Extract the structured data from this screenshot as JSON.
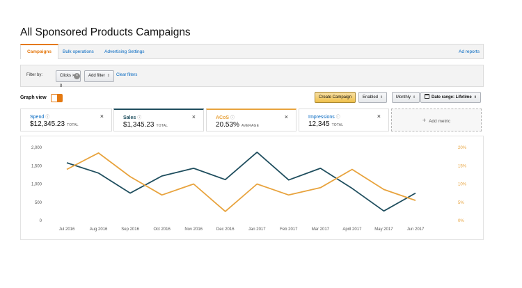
{
  "page": {
    "title": "All Sponsored Products Campaigns"
  },
  "tabs": [
    {
      "label": "Campaigns",
      "active": true
    },
    {
      "label": "Bulk operations",
      "active": false
    },
    {
      "label": "Advertising Settings",
      "active": false
    }
  ],
  "ad_reports_label": "Ad reports",
  "filter": {
    "label": "Filter by:",
    "active_filter": "Clicks > 0",
    "add_filter": "Add filter",
    "clear_filters": "Clear filters"
  },
  "graph_view": {
    "label": "Graph view",
    "enabled": true
  },
  "toolbar": {
    "create_campaign": "Create Campaign",
    "status": "Enabled",
    "interval": "Monthly",
    "date_range": "Date range: Lifetime"
  },
  "metrics": [
    {
      "name": "Spend",
      "value": "$12,345.23",
      "suffix": "TOTAL",
      "selected": false
    },
    {
      "name": "Sales",
      "value": "$1,345.23",
      "suffix": "TOTAL",
      "selected": true
    },
    {
      "name": "ACoS",
      "value": "20.53%",
      "suffix": "AVERAGE",
      "selected": true
    },
    {
      "name": "Impressions",
      "value": "12,345",
      "suffix": "TOTAL",
      "selected": false
    }
  ],
  "add_metric_label": "Add metric",
  "colors": {
    "sales": "#1f4e5e",
    "acos": "#e8a33d",
    "accent": "#e47911",
    "link": "#0066c0"
  },
  "icons": {
    "help": "question-circle-icon",
    "close": "close-icon",
    "add": "plus-icon",
    "calendar": "calendar-icon"
  },
  "chart_data": {
    "type": "line",
    "categories": [
      "Jul 2016",
      "Aug 2016",
      "Sep 2016",
      "Oct 2016",
      "Nov 2016",
      "Dec 2016",
      "Jan 2017",
      "Feb 2017",
      "Mar 2017",
      "April 2017",
      "May 2017",
      "Jun 2017"
    ],
    "series": [
      {
        "name": "Sales",
        "axis": "left",
        "color": "#1f4e5e",
        "values": [
          1580,
          1300,
          750,
          1220,
          1430,
          1120,
          1870,
          1110,
          1430,
          880,
          260,
          750
        ]
      },
      {
        "name": "ACoS",
        "axis": "right",
        "color": "#e8a33d",
        "values": [
          14,
          18.5,
          12,
          7,
          10,
          2.5,
          10,
          7,
          9,
          14,
          8.5,
          5.5
        ]
      }
    ],
    "y_left": {
      "ticks": [
        "0",
        "500",
        "1,000",
        "1,500",
        "2,000"
      ],
      "range": [
        0,
        2000
      ]
    },
    "y_right": {
      "ticks": [
        "0%",
        "5%",
        "10%",
        "15%",
        "20%"
      ],
      "range": [
        0,
        20
      ]
    },
    "grid": false
  }
}
